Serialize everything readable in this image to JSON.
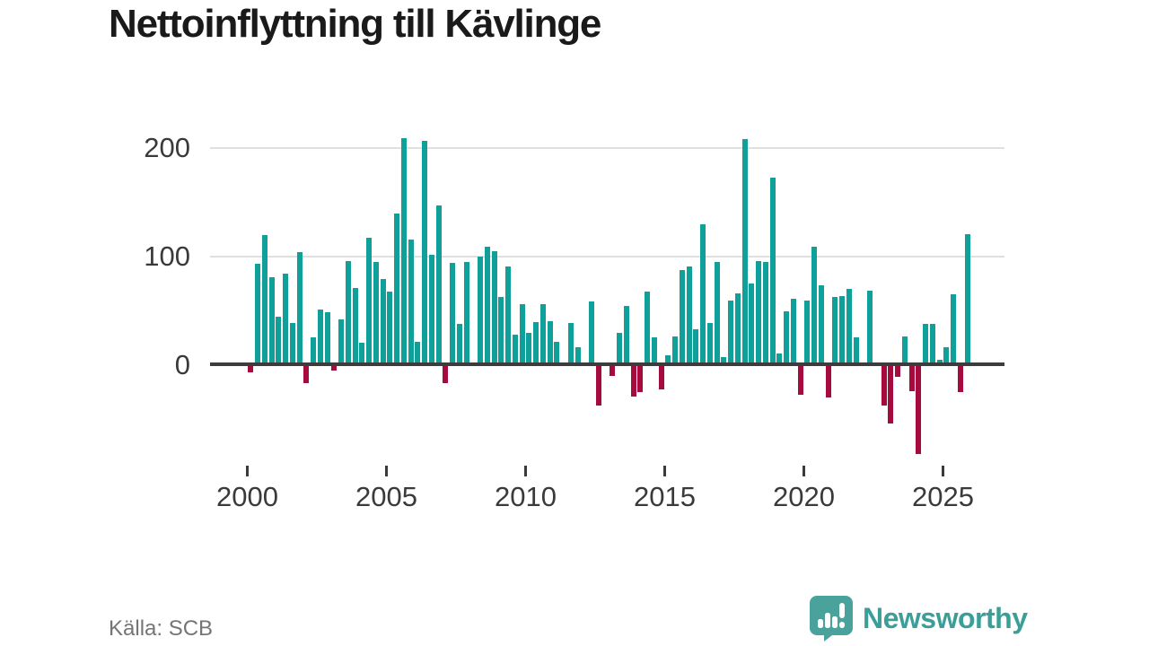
{
  "title": "Nettoinflyttning till Kävlinge",
  "source": "Källa: SCB",
  "brand": {
    "name": "Newsworthy"
  },
  "colors": {
    "positive": "#0fa099",
    "negative": "#a60b3e",
    "axis": "#3c3c3c",
    "grid": "#e0e0e0",
    "logo": "#4aa29d"
  },
  "chart_data": {
    "type": "bar",
    "title": "Nettoinflyttning till Kävlinge",
    "xlabel": "",
    "ylabel": "",
    "grid": "horizontal",
    "legend": "none",
    "ylim": [
      -100,
      220
    ],
    "y_ticks": [
      0,
      100,
      200
    ],
    "y_gridlines": [
      100,
      200
    ],
    "x_ticks": [
      "2000",
      "2005",
      "2010",
      "2015",
      "2020",
      "2025"
    ],
    "quarters": [
      "2000Q1",
      "2000Q2",
      "2000Q3",
      "2000Q4",
      "2001Q1",
      "2001Q2",
      "2001Q3",
      "2001Q4",
      "2002Q1",
      "2002Q2",
      "2002Q3",
      "2002Q4",
      "2003Q1",
      "2003Q2",
      "2003Q3",
      "2003Q4",
      "2004Q1",
      "2004Q2",
      "2004Q3",
      "2004Q4",
      "2005Q1",
      "2005Q2",
      "2005Q3",
      "2005Q4",
      "2006Q1",
      "2006Q2",
      "2006Q3",
      "2006Q4",
      "2007Q1",
      "2007Q2",
      "2007Q3",
      "2007Q4",
      "2008Q1",
      "2008Q2",
      "2008Q3",
      "2008Q4",
      "2009Q1",
      "2009Q2",
      "2009Q3",
      "2009Q4",
      "2010Q1",
      "2010Q2",
      "2010Q3",
      "2010Q4",
      "2011Q1",
      "2011Q2",
      "2011Q3",
      "2011Q4",
      "2012Q1",
      "2012Q2",
      "2012Q3",
      "2012Q4",
      "2013Q1",
      "2013Q2",
      "2013Q3",
      "2013Q4",
      "2014Q1",
      "2014Q2",
      "2014Q3",
      "2014Q4",
      "2015Q1",
      "2015Q2",
      "2015Q3",
      "2015Q4",
      "2016Q1",
      "2016Q2",
      "2016Q3",
      "2016Q4",
      "2017Q1",
      "2017Q2",
      "2017Q3",
      "2017Q4",
      "2018Q1",
      "2018Q2",
      "2018Q3",
      "2018Q4",
      "2019Q1",
      "2019Q2",
      "2019Q3",
      "2019Q4",
      "2020Q1",
      "2020Q2",
      "2020Q3",
      "2020Q4",
      "2021Q1",
      "2021Q2",
      "2021Q3",
      "2021Q4",
      "2022Q1",
      "2022Q2",
      "2022Q3",
      "2022Q4",
      "2023Q1",
      "2023Q2",
      "2023Q3",
      "2023Q4",
      "2024Q1",
      "2024Q2",
      "2024Q3",
      "2024Q4",
      "2025Q1",
      "2025Q2",
      "2025Q3",
      "2025Q4"
    ],
    "values": [
      -6,
      92,
      119,
      80,
      44,
      83,
      38,
      103,
      -16,
      25,
      50,
      48,
      -4,
      41,
      95,
      70,
      20,
      116,
      94,
      78,
      67,
      139,
      208,
      115,
      21,
      205,
      101,
      146,
      -16,
      93,
      37,
      94,
      0,
      99,
      108,
      104,
      62,
      90,
      27,
      55,
      29,
      39,
      55,
      40,
      21,
      0,
      38,
      16,
      0,
      58,
      -36,
      0,
      -9,
      29,
      54,
      -28,
      -24,
      67,
      25,
      -21,
      8,
      26,
      87,
      90,
      32,
      129,
      38,
      94,
      7,
      59,
      65,
      207,
      74,
      95,
      94,
      172,
      10,
      49,
      60,
      -26,
      59,
      108,
      73,
      -29,
      62,
      63,
      69,
      25,
      0,
      68,
      2,
      -36,
      -53,
      -10,
      26,
      -23,
      -81,
      37,
      37,
      4,
      16,
      64,
      -24,
      120
    ]
  }
}
